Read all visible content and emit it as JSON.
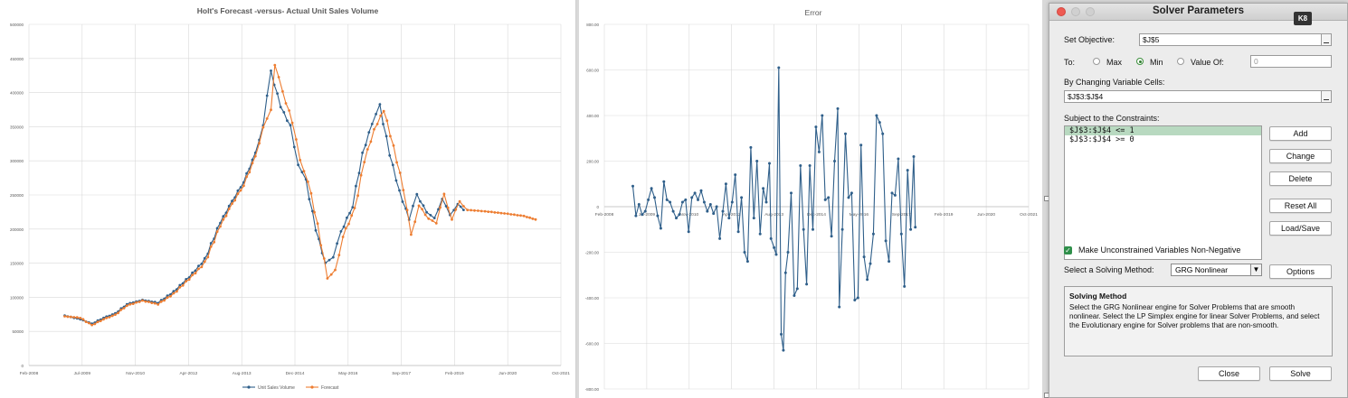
{
  "chart_data": [
    {
      "type": "line",
      "title": "Holt's Forecast -versus- Actual Unit Sales Volume",
      "x_ticks": [
        "Feb-2008",
        "Jul-2009",
        "Nov-2010",
        "Apr-2012",
        "Aug-2013",
        "Dec-2014",
        "May-2016",
        "Sep-2017",
        "Feb-2019",
        "Jun-2020",
        "Oct-2021"
      ],
      "y_ticks": [
        "0",
        "50000",
        "100000",
        "150000",
        "200000",
        "250000",
        "300000",
        "350000",
        "400000",
        "450000",
        "500000"
      ],
      "ylim": [
        0,
        500000
      ],
      "grid": true,
      "legend": "bottom",
      "series": [
        {
          "name": "Unit Sales Volume",
          "color": "#2f5f8a",
          "anchors": [
            [
              2009.0,
              73000
            ],
            [
              2009.4,
              68000
            ],
            [
              2009.7,
              61000
            ],
            [
              2010.0,
              70000
            ],
            [
              2010.3,
              76000
            ],
            [
              2010.6,
              90000
            ],
            [
              2011.0,
              96000
            ],
            [
              2011.4,
              92000
            ],
            [
              2011.8,
              108000
            ],
            [
              2012.2,
              130000
            ],
            [
              2012.6,
              155000
            ],
            [
              2013.0,
              210000
            ],
            [
              2013.3,
              240000
            ],
            [
              2013.6,
              270000
            ],
            [
              2013.9,
              310000
            ],
            [
              2014.1,
              355000
            ],
            [
              2014.3,
              430000
            ],
            [
              2014.55,
              380000
            ],
            [
              2014.8,
              350000
            ],
            [
              2015.0,
              295000
            ],
            [
              2015.2,
              270000
            ],
            [
              2015.45,
              200000
            ],
            [
              2015.7,
              150000
            ],
            [
              2015.9,
              160000
            ],
            [
              2016.1,
              195000
            ],
            [
              2016.4,
              235000
            ],
            [
              2016.65,
              310000
            ],
            [
              2016.9,
              355000
            ],
            [
              2017.1,
              380000
            ],
            [
              2017.35,
              310000
            ],
            [
              2017.6,
              255000
            ],
            [
              2017.85,
              215000
            ],
            [
              2018.05,
              250000
            ],
            [
              2018.3,
              225000
            ],
            [
              2018.5,
              215000
            ],
            [
              2018.7,
              245000
            ],
            [
              2018.9,
              220000
            ],
            [
              2019.1,
              237000
            ],
            [
              2019.25,
              228000
            ]
          ]
        },
        {
          "name": "Forecast",
          "color": "#ed7d31",
          "anchors": [
            [
              2009.0,
              72000
            ],
            [
              2009.4,
              70000
            ],
            [
              2009.7,
              59000
            ],
            [
              2010.0,
              68000
            ],
            [
              2010.3,
              74000
            ],
            [
              2010.6,
              88000
            ],
            [
              2011.0,
              95000
            ],
            [
              2011.4,
              90000
            ],
            [
              2011.8,
              105000
            ],
            [
              2012.2,
              127000
            ],
            [
              2012.6,
              150000
            ],
            [
              2013.0,
              205000
            ],
            [
              2013.3,
              236000
            ],
            [
              2013.6,
              265000
            ],
            [
              2013.9,
              305000
            ],
            [
              2014.1,
              350000
            ],
            [
              2014.3,
              372000
            ],
            [
              2014.4,
              442000
            ],
            [
              2014.6,
              400000
            ],
            [
              2014.85,
              358000
            ],
            [
              2015.05,
              300000
            ],
            [
              2015.25,
              272000
            ],
            [
              2015.5,
              205000
            ],
            [
              2015.75,
              128000
            ],
            [
              2015.95,
              138000
            ],
            [
              2016.15,
              190000
            ],
            [
              2016.45,
              228000
            ],
            [
              2016.7,
              300000
            ],
            [
              2016.95,
              345000
            ],
            [
              2017.2,
              375000
            ],
            [
              2017.45,
              320000
            ],
            [
              2017.7,
              260000
            ],
            [
              2017.9,
              190000
            ],
            [
              2018.1,
              235000
            ],
            [
              2018.35,
              215000
            ],
            [
              2018.55,
              210000
            ],
            [
              2018.75,
              250000
            ],
            [
              2018.95,
              215000
            ],
            [
              2019.15,
              240000
            ],
            [
              2019.35,
              228000
            ],
            [
              2019.8,
              226000
            ],
            [
              2020.3,
              223000
            ],
            [
              2020.8,
              219000
            ],
            [
              2021.1,
              214000
            ]
          ]
        }
      ]
    },
    {
      "type": "line",
      "title": "Error",
      "x_ticks": [
        "Feb-2008",
        "Jul-2009",
        "Nov-2010",
        "Apr-2012",
        "Aug-2013",
        "Dec-2014",
        "May-2016",
        "Sep-2017",
        "Feb-2019",
        "Jun-2020",
        "Oct-2021"
      ],
      "y_ticks": [
        "-800.00",
        "-600.00",
        "-400.00",
        "-200.00",
        "0",
        "200.00",
        "400.00",
        "600.00",
        "800.00"
      ],
      "ylim": [
        -800,
        800
      ],
      "grid": true,
      "series": [
        {
          "name": "",
          "color": "#2f5f8a",
          "values": [
            [
              2009.0,
              90
            ],
            [
              2009.1,
              -40
            ],
            [
              2009.2,
              10
            ],
            [
              2009.3,
              -35
            ],
            [
              2009.4,
              -20
            ],
            [
              2009.5,
              30
            ],
            [
              2009.6,
              80
            ],
            [
              2009.7,
              40
            ],
            [
              2009.8,
              -40
            ],
            [
              2009.9,
              -95
            ],
            [
              2010.0,
              110
            ],
            [
              2010.1,
              30
            ],
            [
              2010.2,
              20
            ],
            [
              2010.3,
              -20
            ],
            [
              2010.4,
              -50
            ],
            [
              2010.5,
              -35
            ],
            [
              2010.6,
              20
            ],
            [
              2010.7,
              30
            ],
            [
              2010.8,
              -110
            ],
            [
              2010.9,
              40
            ],
            [
              2011.0,
              60
            ],
            [
              2011.1,
              30
            ],
            [
              2011.2,
              70
            ],
            [
              2011.3,
              20
            ],
            [
              2011.4,
              -20
            ],
            [
              2011.5,
              10
            ],
            [
              2011.6,
              -30
            ],
            [
              2011.7,
              0
            ],
            [
              2011.8,
              -140
            ],
            [
              2011.9,
              -20
            ],
            [
              2012.0,
              100
            ],
            [
              2012.1,
              -50
            ],
            [
              2012.2,
              20
            ],
            [
              2012.3,
              140
            ],
            [
              2012.4,
              -110
            ],
            [
              2012.5,
              40
            ],
            [
              2012.6,
              -200
            ],
            [
              2012.7,
              -240
            ],
            [
              2012.8,
              260
            ],
            [
              2012.9,
              -50
            ],
            [
              2013.0,
              200
            ],
            [
              2013.1,
              -120
            ],
            [
              2013.2,
              80
            ],
            [
              2013.3,
              20
            ],
            [
              2013.4,
              190
            ],
            [
              2013.45,
              -140
            ],
            [
              2013.55,
              -180
            ],
            [
              2013.62,
              -210
            ],
            [
              2013.7,
              610
            ],
            [
              2013.78,
              -560
            ],
            [
              2013.85,
              -630
            ],
            [
              2013.92,
              -290
            ],
            [
              2014.0,
              -200
            ],
            [
              2014.1,
              60
            ],
            [
              2014.2,
              -390
            ],
            [
              2014.3,
              -360
            ],
            [
              2014.4,
              180
            ],
            [
              2014.5,
              -100
            ],
            [
              2014.6,
              -340
            ],
            [
              2014.7,
              180
            ],
            [
              2014.8,
              -100
            ],
            [
              2014.9,
              350
            ],
            [
              2015.0,
              240
            ],
            [
              2015.1,
              400
            ],
            [
              2015.2,
              30
            ],
            [
              2015.3,
              40
            ],
            [
              2015.4,
              -130
            ],
            [
              2015.5,
              200
            ],
            [
              2015.6,
              430
            ],
            [
              2015.65,
              -440
            ],
            [
              2015.75,
              -100
            ],
            [
              2015.85,
              320
            ],
            [
              2015.95,
              40
            ],
            [
              2016.05,
              60
            ],
            [
              2016.15,
              -410
            ],
            [
              2016.25,
              -400
            ],
            [
              2016.35,
              270
            ],
            [
              2016.45,
              -220
            ],
            [
              2016.55,
              -320
            ],
            [
              2016.65,
              -250
            ],
            [
              2016.75,
              -120
            ],
            [
              2016.85,
              400
            ],
            [
              2016.95,
              370
            ],
            [
              2017.05,
              320
            ],
            [
              2017.15,
              -150
            ],
            [
              2017.25,
              -240
            ],
            [
              2017.35,
              60
            ],
            [
              2017.45,
              50
            ],
            [
              2017.55,
              210
            ],
            [
              2017.65,
              -120
            ],
            [
              2017.75,
              -350
            ],
            [
              2017.85,
              160
            ],
            [
              2017.95,
              -100
            ],
            [
              2018.05,
              220
            ],
            [
              2018.1,
              -90
            ]
          ]
        }
      ]
    }
  ],
  "dialog": {
    "title": "Solver Parameters",
    "kb_badge": "K8",
    "set_objective_label": "Set Objective:",
    "set_objective_value": "$J$5",
    "to_label": "To:",
    "max_label": "Max",
    "min_label": "Min",
    "value_of_label": "Value Of:",
    "value_of_value": "0",
    "by_changing_label": "By Changing Variable Cells:",
    "by_changing_value": "$J$3:$J$4",
    "constraints_label": "Subject to the Constraints:",
    "constraints": [
      "$J$3:$J$4 <= 1",
      "$J$3:$J$4 >= 0"
    ],
    "add_label": "Add",
    "change_label": "Change",
    "delete_label": "Delete",
    "reset_all_label": "Reset All",
    "load_save_label": "Load/Save",
    "make_unconstrained_label": "Make Unconstrained Variables Non-Negative",
    "select_method_label": "Select a Solving Method:",
    "method_value": "GRG Nonlinear",
    "options_label": "Options",
    "solving_method_heading": "Solving Method",
    "solving_method_text": "Select the GRG Nonlinear engine for Solver Problems that are smooth nonlinear. Select the LP Simplex engine for linear Solver Problems, and select the Evolutionary engine for Solver problems that are non-smooth.",
    "close_label": "Close",
    "solve_label": "Solve"
  }
}
